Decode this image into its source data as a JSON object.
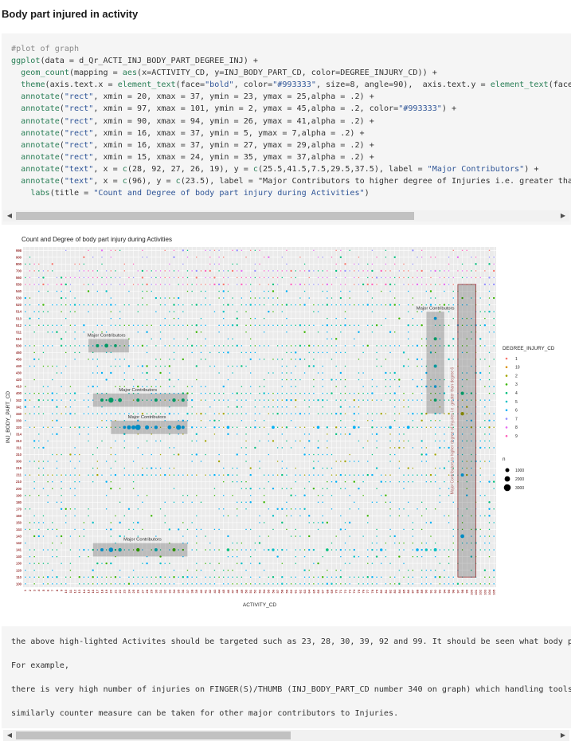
{
  "section_title": "Body part injured in activity",
  "code_lines": [
    "#plot of graph",
    "ggplot(data = d_Qr_ACTI_INJ_BODY_PART_DEGREE_INJ) +",
    "  geom_count(mapping = aes(x=ACTIVITY_CD, y=INJ_BODY_PART_CD, color=DEGREE_INJURY_CD)) +",
    "  theme(axis.text.x = element_text(face=\"bold\", color=\"#993333\", size=8, angle=90),  axis.text.y = element_text(face=",
    "  annotate(\"rect\", xmin = 20, xmax = 37, ymin = 23, ymax = 25,alpha = .2) +",
    "  annotate(\"rect\", xmin = 97, xmax = 101, ymin = 2, ymax = 45,alpha = .2, color=\"#993333\") +",
    "  annotate(\"rect\", xmin = 90, xmax = 94, ymin = 26, ymax = 41,alpha = .2) +",
    "  annotate(\"rect\", xmin = 16, xmax = 37, ymin = 5, ymax = 7,alpha = .2) +",
    "  annotate(\"rect\", xmin = 16, xmax = 37, ymin = 27, ymax = 29,alpha = .2) +",
    "  annotate(\"rect\", xmin = 15, xmax = 24, ymin = 35, ymax = 37,alpha = .2) +",
    "  annotate(\"text\", x = c(28, 92, 27, 26, 19), y = c(25.5,41.5,7.5,29.5,37.5), label = \"Major Contributors\") +",
    "  annotate(\"text\", x = c(96), y = c(23.5), label = \"Major Contributors to higher degree of Injuries i.e. greater than",
    "    labs(title = \"Count and Degree of body part injury during Activities\")"
  ],
  "output_lines": [
    "the above high-lighted Activites should be targeted such as 23, 28, 30, 39, 92 and 99. It should be seen what body pa",
    "For example,",
    "there is very high number of injuries on FINGER(S)/THUMB (INJ_BODY_PART_CD number 340 on graph) which handling tools",
    "similarly counter measure can be taken for other major contributors to Injuries."
  ],
  "chart_data": {
    "type": "scatter",
    "title": "Count and Degree of body part injury during Activities",
    "xlabel": "ACTIVITY_CD",
    "ylabel": "INJ_BODY_PART_CD",
    "y_ticks": [
      "100",
      "110",
      "120",
      "130",
      "140",
      "141",
      "142",
      "143",
      "144",
      "150",
      "160",
      "170",
      "180",
      "190",
      "200",
      "210",
      "211",
      "219",
      "300",
      "310",
      "311",
      "313",
      "314",
      "320",
      "330",
      "340",
      "341",
      "342",
      "400",
      "410",
      "420",
      "430",
      "440",
      "450",
      "460",
      "500",
      "510",
      "511",
      "512",
      "513",
      "514",
      "520",
      "530",
      "540",
      "550",
      "560",
      "700",
      "800",
      "900",
      "998"
    ],
    "x_tick_count": 105,
    "legend": {
      "color_title": "DEGREE_INJURY_CD",
      "color_entries": [
        {
          "label": "1",
          "color": "#f8766d"
        },
        {
          "label": "10",
          "color": "#d89000"
        },
        {
          "label": "2",
          "color": "#a3a500"
        },
        {
          "label": "3",
          "color": "#39b600"
        },
        {
          "label": "4",
          "color": "#00bf7d"
        },
        {
          "label": "5",
          "color": "#00bfc4"
        },
        {
          "label": "6",
          "color": "#00b0f6"
        },
        {
          "label": "7",
          "color": "#9590ff"
        },
        {
          "label": "8",
          "color": "#e76bf3"
        },
        {
          "label": "9",
          "color": "#ff62bc"
        }
      ],
      "size_title": "n",
      "size_entries": [
        {
          "label": "1000",
          "n": 1000
        },
        {
          "label": "2000",
          "n": 2000
        },
        {
          "label": "3000",
          "n": 3000
        }
      ],
      "position": "right"
    },
    "annotations": [
      {
        "label": "Major Contributors",
        "x": 28,
        "y": 25.5
      },
      {
        "label": "Major Contributors",
        "x": 92,
        "y": 41.5
      },
      {
        "label": "Major Contributors",
        "x": 27,
        "y": 7.5
      },
      {
        "label": "Major Contributors",
        "x": 26,
        "y": 29.5
      },
      {
        "label": "Major Contributors",
        "x": 19,
        "y": 37.5
      },
      {
        "label": "Major Contributors to higher degree of Injuries i.e. greater than degree 6",
        "x": 96,
        "y": 23.5
      }
    ],
    "highlight_rects": [
      {
        "xmin": 20,
        "xmax": 37,
        "ymin": 23,
        "ymax": 25
      },
      {
        "xmin": 97,
        "xmax": 101,
        "ymin": 2,
        "ymax": 45,
        "border": "#993333"
      },
      {
        "xmin": 90,
        "xmax": 94,
        "ymin": 26,
        "ymax": 41
      },
      {
        "xmin": 16,
        "xmax": 37,
        "ymin": 5,
        "ymax": 7
      },
      {
        "xmin": 16,
        "xmax": 37,
        "ymin": 27,
        "ymax": 29
      },
      {
        "xmin": 15,
        "xmax": 24,
        "ymin": 35,
        "ymax": 37
      }
    ],
    "grid": true
  }
}
